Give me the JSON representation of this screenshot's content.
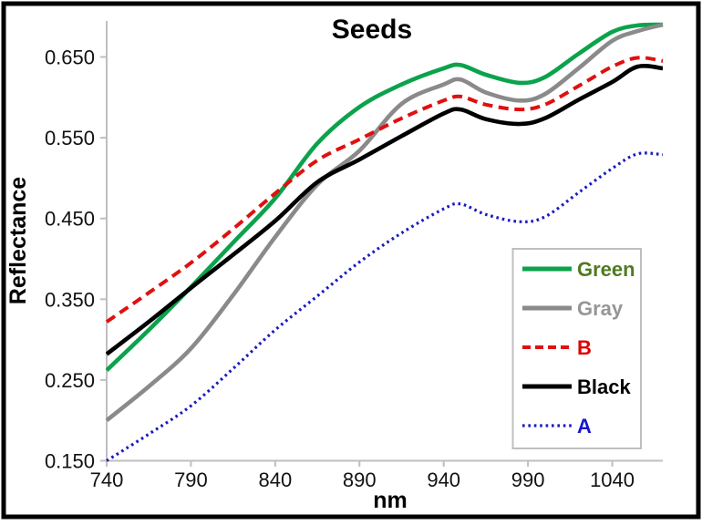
{
  "chart_data": {
    "type": "line",
    "title": "Seeds",
    "xlabel": "nm",
    "ylabel": "Reflectance",
    "x_ticks": [
      "740",
      "790",
      "840",
      "890",
      "940",
      "990",
      "1040"
    ],
    "y_ticks": [
      "0.150",
      "0.250",
      "0.350",
      "0.450",
      "0.550",
      "0.650"
    ],
    "xlim": [
      740,
      1070
    ],
    "ylim": [
      0.15,
      0.6935
    ],
    "grid": false,
    "legend_position": "inside-bottom-right",
    "x": [
      740,
      765,
      790,
      815,
      840,
      865,
      890,
      915,
      940,
      950,
      965,
      985,
      1000,
      1020,
      1040,
      1055,
      1070
    ],
    "series": [
      {
        "name": "Green",
        "color": "#0CA24C",
        "label_color": "#4E7B20",
        "style": "solid",
        "width": 4.6,
        "values": [
          0.262,
          0.312,
          0.365,
          0.42,
          0.475,
          0.543,
          0.588,
          0.616,
          0.636,
          0.64,
          0.628,
          0.618,
          0.625,
          0.654,
          0.681,
          0.689,
          0.69
        ]
      },
      {
        "name": "Gray",
        "color": "#8A8A8A",
        "label_color": "#969696",
        "style": "solid",
        "width": 4.6,
        "values": [
          0.2,
          0.242,
          0.289,
          0.355,
          0.427,
          0.492,
          0.534,
          0.592,
          0.616,
          0.622,
          0.606,
          0.596,
          0.604,
          0.636,
          0.67,
          0.682,
          0.69
        ]
      },
      {
        "name": "B",
        "color": "#E01010",
        "label_color": "#E00000",
        "style": "dashed",
        "width": 4.0,
        "values": [
          0.322,
          0.358,
          0.395,
          0.437,
          0.481,
          0.522,
          0.548,
          0.574,
          0.596,
          0.601,
          0.591,
          0.585,
          0.591,
          0.614,
          0.638,
          0.649,
          0.645
        ]
      },
      {
        "name": "Black",
        "color": "#000000",
        "label_color": "#000000",
        "style": "solid",
        "width": 4.6,
        "values": [
          0.282,
          0.322,
          0.364,
          0.405,
          0.447,
          0.495,
          0.523,
          0.552,
          0.58,
          0.585,
          0.573,
          0.567,
          0.574,
          0.597,
          0.619,
          0.638,
          0.636
        ]
      },
      {
        "name": "A",
        "color": "#1A1AC4",
        "label_color": "#1414CC",
        "style": "dotted",
        "width": 3.2,
        "values": [
          0.15,
          0.183,
          0.218,
          0.264,
          0.312,
          0.354,
          0.396,
          0.432,
          0.462,
          0.468,
          0.455,
          0.446,
          0.452,
          0.482,
          0.512,
          0.53,
          0.529
        ]
      }
    ]
  },
  "colors": {
    "background": "#FFFFFF",
    "outer_border": "#000000",
    "axis": "#BFBFBF",
    "legend_border": "#BFBFBF",
    "legend_fill": "#FFFFFF"
  }
}
